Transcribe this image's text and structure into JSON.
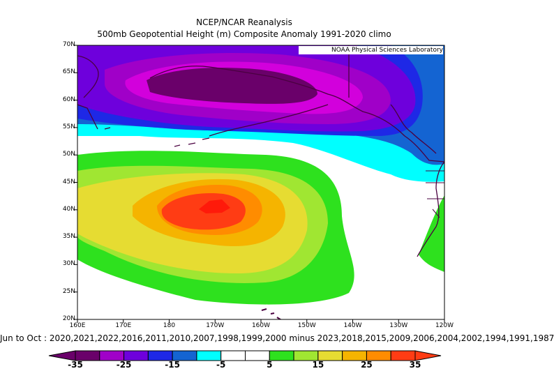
{
  "header": {
    "title": "NCEP/NCAR Reanalysis",
    "subtitle": "500mb Geopotential Height (m) Composite Anomaly 1991-2020 climo"
  },
  "credit": "NOAA Physical Sciences Laboratory",
  "axes": {
    "lat_labels": [
      "70N",
      "65N",
      "60N",
      "55N",
      "50N",
      "45N",
      "40N",
      "35N",
      "30N",
      "25N",
      "20N"
    ],
    "lon_labels": [
      "160E",
      "170E",
      "180",
      "170W",
      "160W",
      "150W",
      "140W",
      "130W",
      "120W"
    ]
  },
  "caption": "Jun to Oct : 2020,2021,2022,2016,2011,2010,2007,1998,1999,2000 minus 2023,2018,2015,2009,2006,2004,2002,1994,1991,1987",
  "colorbar": {
    "labels": [
      "-35",
      "-25",
      "-15",
      "-5",
      "5",
      "15",
      "25",
      "35"
    ],
    "colors": [
      "#6a006a",
      "#a000c8",
      "#6e00dc",
      "#1e28e6",
      "#1464d2",
      "#00ffff",
      "#ffffff",
      "#ffffff",
      "#2ee11e",
      "#a0e632",
      "#e6dc32",
      "#f5b400",
      "#ff8c00",
      "#ff3c14"
    ]
  },
  "map_colors": {
    "land_outline": "#4a0040",
    "border": "#000000"
  }
}
